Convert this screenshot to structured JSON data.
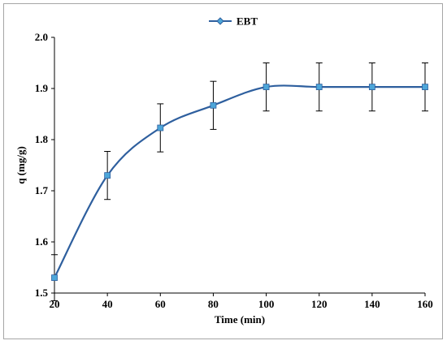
{
  "chart_data": {
    "type": "line",
    "smooth": true,
    "x": [
      20,
      40,
      60,
      80,
      100,
      120,
      140,
      160
    ],
    "series": [
      {
        "name": "EBT",
        "values": [
          1.53,
          1.73,
          1.823,
          1.867,
          1.903,
          1.903,
          1.903,
          1.903
        ],
        "error": [
          0.045,
          0.047,
          0.047,
          0.047,
          0.047,
          0.047,
          0.047,
          0.047
        ],
        "color": "#2e5f9e",
        "marker_color": "#4da6d9"
      }
    ],
    "xlabel": "Time (min)",
    "ylabel": "q (mg/g)",
    "xlim": [
      20,
      160
    ],
    "ylim": [
      1.5,
      2.0
    ],
    "x_ticks": [
      "20",
      "40",
      "60",
      "80",
      "100",
      "120",
      "140",
      "160"
    ],
    "y_ticks": [
      "1.5",
      "1.6",
      "1.7",
      "1.8",
      "1.9",
      "2.0"
    ],
    "grid": false,
    "legend_position": "top-center"
  }
}
